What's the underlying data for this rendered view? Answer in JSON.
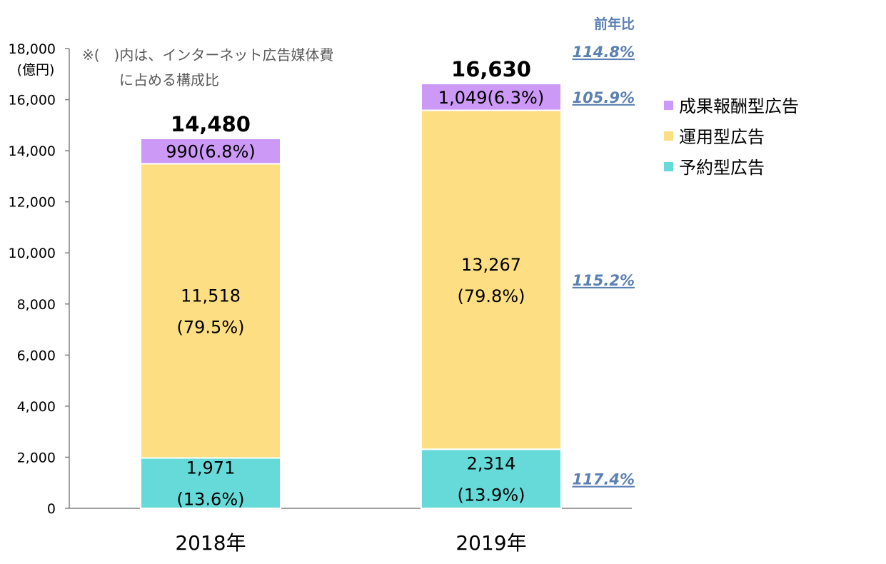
{
  "chart_data": {
    "type": "stacked-bar",
    "categories": [
      "2018年",
      "2019年"
    ],
    "series": [
      {
        "name": "予約型広告",
        "values": [
          1971,
          2314
        ],
        "labels": [
          [
            "1,971",
            "(13.6%)"
          ],
          [
            "2,314",
            "(13.9%)"
          ]
        ],
        "color": "#66DAD8"
      },
      {
        "name": "運用型広告",
        "values": [
          11518,
          13267
        ],
        "labels": [
          [
            "11,518",
            "(79.5%)"
          ],
          [
            "13,267",
            "(79.8%)"
          ]
        ],
        "color": "#FDDE83"
      },
      {
        "name": "成果報酬型広告",
        "values": [
          990,
          1049
        ],
        "labels": [
          [
            "990(6.8%)"
          ],
          [
            "1,049(6.3%)"
          ]
        ],
        "color": "#CC99F6"
      }
    ],
    "totals": [
      "14,480",
      "16,630"
    ],
    "ylim": [
      0,
      18000
    ],
    "yticks": [
      0,
      2000,
      4000,
      6000,
      8000,
      10000,
      12000,
      14000,
      16000,
      18000
    ],
    "ytick_labels": [
      "0",
      "2,000",
      "4,000",
      "6,000",
      "8,000",
      "10,000",
      "12,000",
      "14,000",
      "16,000",
      "18,000"
    ],
    "yunit": "(億円)",
    "note": [
      "※(　)内は、インターネット広告媒体費",
      "に占める構成比"
    ],
    "yoy_header": "前年比",
    "yoy_total": "114.8%",
    "yoy_series": [
      "117.4%",
      "115.2%",
      "105.9%"
    ],
    "legend_order": [
      "成果報酬型広告",
      "運用型広告",
      "予約型広告"
    ],
    "legend_placement": "right",
    "grid": false
  }
}
